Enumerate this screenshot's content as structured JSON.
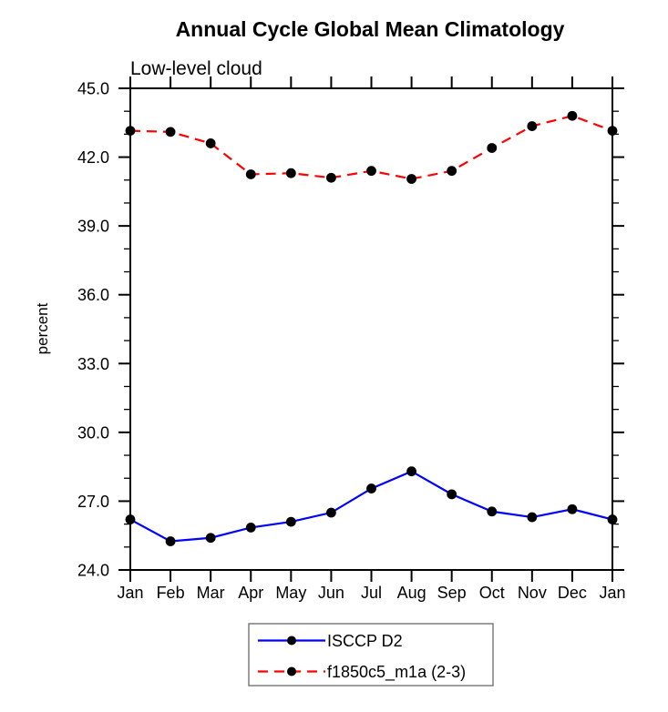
{
  "chart_data": {
    "type": "line",
    "title": "Annual Cycle Global Mean Climatology",
    "subtitle": "Low-level cloud",
    "ylabel": "percent",
    "xlabel": "",
    "categories": [
      "Jan",
      "Feb",
      "Mar",
      "Apr",
      "May",
      "Jun",
      "Jul",
      "Aug",
      "Sep",
      "Oct",
      "Nov",
      "Dec",
      "Jan"
    ],
    "series": [
      {
        "name": "ISCCP D2",
        "color": "#0000ff",
        "style": "solid",
        "marker": "filled-circle",
        "values": [
          26.2,
          25.25,
          25.4,
          25.85,
          26.1,
          26.5,
          27.55,
          28.3,
          27.3,
          26.55,
          26.3,
          26.65,
          26.2
        ]
      },
      {
        "name": "f1850c5_m1a (2-3)",
        "color": "#ff0000",
        "style": "dashed",
        "marker": "filled-circle",
        "values": [
          43.15,
          43.1,
          42.6,
          41.25,
          41.3,
          41.1,
          41.4,
          41.05,
          41.4,
          42.4,
          43.35,
          43.8,
          43.15
        ]
      }
    ],
    "ylim": [
      24.0,
      45.0
    ],
    "ytick_major_step": 3.0,
    "ytick_minor_step": 1.0,
    "ytick_labels": [
      "24.0",
      "27.0",
      "30.0",
      "33.0",
      "36.0",
      "39.0",
      "42.0",
      "45.0"
    ],
    "grid": false,
    "legend_position": "bottom-center"
  },
  "style": {
    "axis_color": "#000000",
    "marker_color": "#000000",
    "background": "#ffffff",
    "legend_border": "#7d7d7d"
  }
}
